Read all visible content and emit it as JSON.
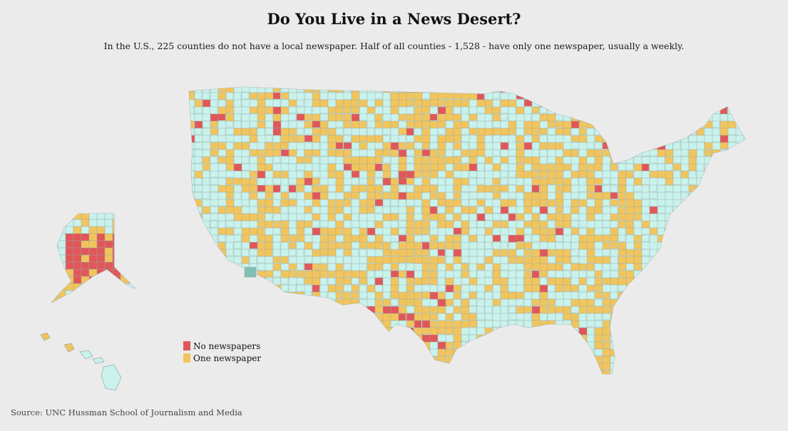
{
  "header": {
    "title": "Do You Live in a News Desert?",
    "subtitle": "In the U.S., 225 counties do not have a local newspaper. Half of all counties - 1,528 - have only one newspaper, usually a weekly."
  },
  "legend": {
    "items": [
      {
        "label": "No newspapers",
        "color": "#e15759"
      },
      {
        "label": "One newspaper",
        "color": "#f1c55e"
      }
    ]
  },
  "colors": {
    "background": "#ebebeb",
    "multiple_newspapers": "#c9f2ec",
    "one_newspaper": "#f1c55e",
    "no_newspapers": "#e15759",
    "county_border": "#9aa7a4",
    "no_data": "#7fbfb4"
  },
  "footer": {
    "source": "Source: UNC Hussman School of Journalism and Media"
  }
}
